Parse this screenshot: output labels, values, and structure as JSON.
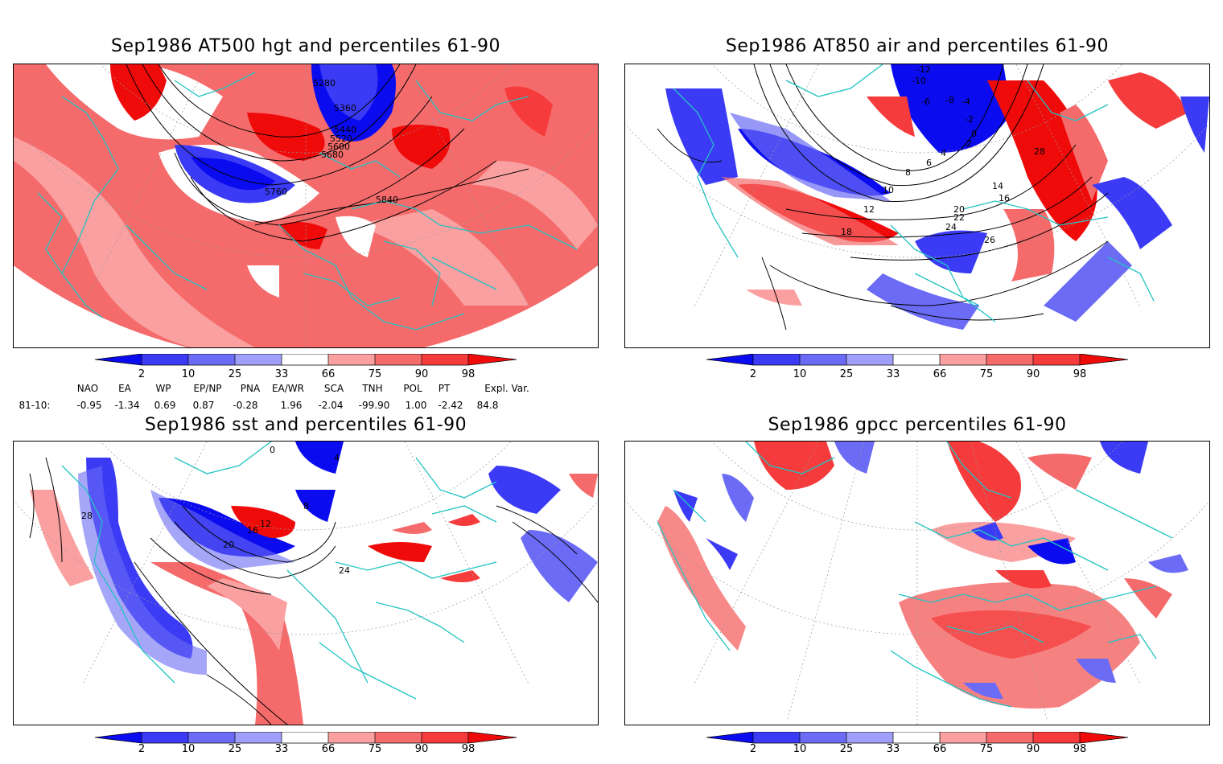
{
  "panels": [
    {
      "id": "z500",
      "title": "Sep1986 AT500 hgt and percentiles 61-90",
      "contour_labels": [
        "5280",
        "5360",
        "5440",
        "5520",
        "5600",
        "5680",
        "5760",
        "5840"
      ]
    },
    {
      "id": "t850",
      "title": "Sep1986 AT850 air and percentiles 61-90",
      "contour_labels": [
        "-12",
        "-10",
        "-8",
        "-6",
        "-4",
        "-2",
        "0",
        "2",
        "4",
        "6",
        "8",
        "10",
        "12",
        "14",
        "16",
        "18",
        "20",
        "22",
        "24",
        "26",
        "28"
      ]
    },
    {
      "id": "sst",
      "title": "Sep1986 sst and percentiles 61-90",
      "contour_labels": [
        "0",
        "4",
        "8",
        "12",
        "16",
        "20",
        "24",
        "28"
      ]
    },
    {
      "id": "gpcc",
      "title": "Sep1986 gpcc percentiles 61-90",
      "contour_labels": []
    }
  ],
  "colorbar": {
    "labels": [
      "2",
      "10",
      "25",
      "33",
      "66",
      "75",
      "90",
      "98"
    ],
    "colors": [
      "#0b0bf0",
      "#3b3bf5",
      "#6b6bf5",
      "#a0a0fa",
      "#ffffff",
      "#faa0a0",
      "#f56b6b",
      "#f53b3b",
      "#f00b0b"
    ]
  },
  "indices": {
    "headers": [
      "NAO",
      "EA",
      "WP",
      "EP/NP",
      "PNA",
      "EA/WR",
      "SCA",
      "TNH",
      "POL",
      "PT",
      "Expl. Var."
    ],
    "row_label": "81-10:",
    "values": [
      "-0.95",
      "-1.34",
      "0.69",
      "0.87",
      "-0.28",
      "1.96",
      "-2.04",
      "-99.90",
      "1.00",
      "-2.42",
      "84.8"
    ]
  },
  "colors": {
    "coast": "#22c3c3",
    "contour": "#000000",
    "grid": "#999999"
  }
}
